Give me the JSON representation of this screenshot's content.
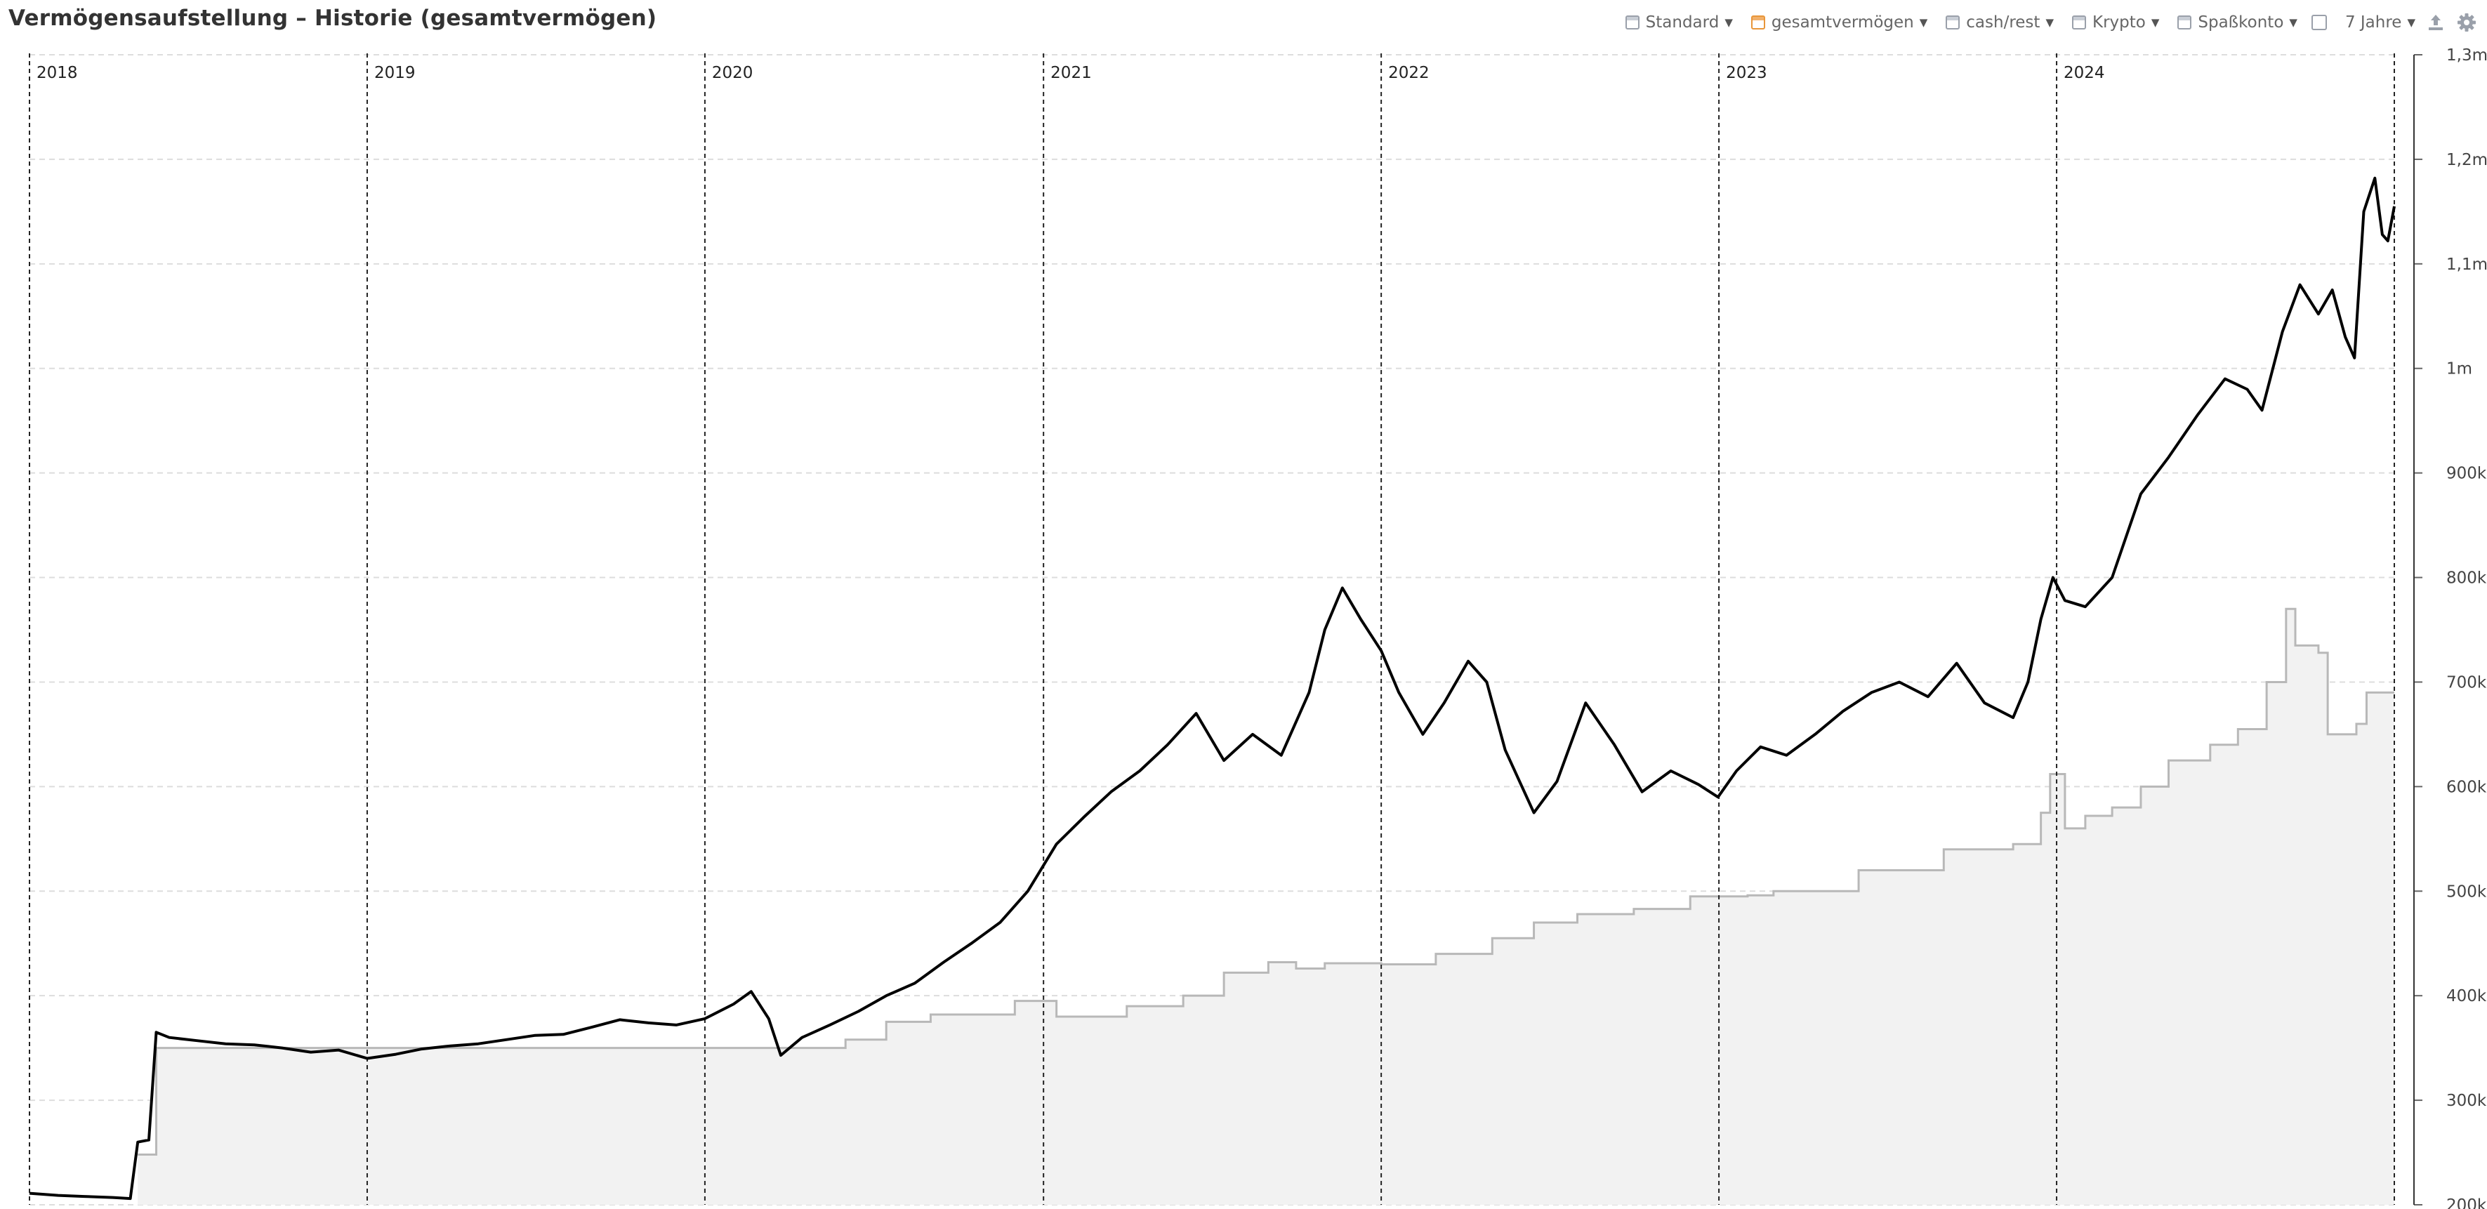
{
  "header": {
    "title": "Vermögensaufstellung – Historie (gesamtvermögen)"
  },
  "toolbar": {
    "items": [
      {
        "label": "Standard",
        "active": false
      },
      {
        "label": "gesamtvermögen",
        "active": true
      },
      {
        "label": "cash/rest",
        "active": false
      },
      {
        "label": "Krypto",
        "active": false
      },
      {
        "label": "Spaßkonto",
        "active": false
      }
    ],
    "range_label": "7 Jahre",
    "icons": [
      "expand-icon",
      "export-icon",
      "gear-icon"
    ]
  },
  "colors": {
    "line": "#000000",
    "invested_line": "#b8b8b8",
    "invested_fill": "#f2f2f2",
    "grid": "#dddddd",
    "year_line": "#222222"
  },
  "chart_data": {
    "type": "line",
    "title": "",
    "xlabel": "",
    "ylabel": "",
    "ylim": [
      200000,
      1300000
    ],
    "y_ticks": [
      "200k",
      "300k",
      "400k",
      "500k",
      "600k",
      "700k",
      "800k",
      "900k",
      "1m",
      "1,1m",
      "1,2m",
      "1,3m"
    ],
    "y_tick_values": [
      200000,
      300000,
      400000,
      500000,
      600000,
      700000,
      800000,
      900000,
      1000000,
      1100000,
      1200000,
      1300000
    ],
    "x_range": [
      "2018-01-01",
      "2024-12-31"
    ],
    "year_markers": [
      {
        "label": "2018",
        "date": "2018-01-01"
      },
      {
        "label": "2019",
        "date": "2019-01-01"
      },
      {
        "label": "2020",
        "date": "2020-01-01"
      },
      {
        "label": "2021",
        "date": "2021-01-01"
      },
      {
        "label": "2022",
        "date": "2022-01-01"
      },
      {
        "label": "2023",
        "date": "2023-01-01"
      },
      {
        "label": "2024",
        "date": "2024-01-01"
      }
    ],
    "grid": true,
    "series": [
      {
        "type": "line",
        "points": [
          [
            "2018-01-01",
            211000
          ],
          [
            "2018-02-01",
            209000
          ],
          [
            "2018-03-01",
            208000
          ],
          [
            "2018-04-01",
            207000
          ],
          [
            "2018-04-20",
            206000
          ],
          [
            "2018-04-28",
            260000
          ],
          [
            "2018-05-10",
            262000
          ],
          [
            "2018-05-18",
            365000
          ],
          [
            "2018-06-01",
            360000
          ],
          [
            "2018-07-01",
            357000
          ],
          [
            "2018-08-01",
            354000
          ],
          [
            "2018-09-01",
            353000
          ],
          [
            "2018-10-01",
            350000
          ],
          [
            "2018-11-01",
            346000
          ],
          [
            "2018-12-01",
            348000
          ],
          [
            "2019-01-01",
            340000
          ],
          [
            "2019-02-01",
            344000
          ],
          [
            "2019-03-01",
            349000
          ],
          [
            "2019-04-01",
            352000
          ],
          [
            "2019-05-01",
            354000
          ],
          [
            "2019-06-01",
            358000
          ],
          [
            "2019-07-01",
            362000
          ],
          [
            "2019-08-01",
            363000
          ],
          [
            "2019-09-01",
            370000
          ],
          [
            "2019-10-01",
            377000
          ],
          [
            "2019-11-01",
            374000
          ],
          [
            "2019-12-01",
            372000
          ],
          [
            "2020-01-01",
            378000
          ],
          [
            "2020-02-01",
            392000
          ],
          [
            "2020-02-20",
            404000
          ],
          [
            "2020-03-10",
            378000
          ],
          [
            "2020-03-23",
            343000
          ],
          [
            "2020-04-15",
            360000
          ],
          [
            "2020-05-15",
            372000
          ],
          [
            "2020-06-15",
            385000
          ],
          [
            "2020-07-15",
            400000
          ],
          [
            "2020-08-15",
            412000
          ],
          [
            "2020-09-15",
            432000
          ],
          [
            "2020-10-15",
            450000
          ],
          [
            "2020-11-15",
            470000
          ],
          [
            "2020-12-15",
            500000
          ],
          [
            "2021-01-15",
            545000
          ],
          [
            "2021-02-15",
            572000
          ],
          [
            "2021-03-15",
            595000
          ],
          [
            "2021-04-15",
            615000
          ],
          [
            "2021-05-15",
            640000
          ],
          [
            "2021-06-15",
            670000
          ],
          [
            "2021-07-15",
            625000
          ],
          [
            "2021-08-15",
            650000
          ],
          [
            "2021-09-15",
            630000
          ],
          [
            "2021-10-15",
            690000
          ],
          [
            "2021-11-01",
            750000
          ],
          [
            "2021-11-20",
            790000
          ],
          [
            "2021-12-10",
            760000
          ],
          [
            "2022-01-01",
            730000
          ],
          [
            "2022-01-20",
            690000
          ],
          [
            "2022-02-15",
            650000
          ],
          [
            "2022-03-10",
            680000
          ],
          [
            "2022-04-05",
            720000
          ],
          [
            "2022-04-25",
            700000
          ],
          [
            "2022-05-15",
            635000
          ],
          [
            "2022-06-15",
            575000
          ],
          [
            "2022-07-10",
            605000
          ],
          [
            "2022-08-10",
            680000
          ],
          [
            "2022-09-10",
            640000
          ],
          [
            "2022-10-10",
            595000
          ],
          [
            "2022-11-10",
            615000
          ],
          [
            "2022-12-10",
            602000
          ],
          [
            "2022-12-31",
            590000
          ],
          [
            "2023-01-20",
            615000
          ],
          [
            "2023-02-15",
            638000
          ],
          [
            "2023-03-15",
            630000
          ],
          [
            "2023-04-15",
            650000
          ],
          [
            "2023-05-15",
            672000
          ],
          [
            "2023-06-15",
            690000
          ],
          [
            "2023-07-15",
            700000
          ],
          [
            "2023-08-15",
            686000
          ],
          [
            "2023-09-15",
            718000
          ],
          [
            "2023-10-15",
            680000
          ],
          [
            "2023-11-15",
            666000
          ],
          [
            "2023-12-01",
            700000
          ],
          [
            "2023-12-15",
            760000
          ],
          [
            "2023-12-28",
            800000
          ],
          [
            "2024-01-10",
            778000
          ],
          [
            "2024-02-01",
            772000
          ],
          [
            "2024-03-01",
            800000
          ],
          [
            "2024-04-01",
            880000
          ],
          [
            "2024-05-01",
            915000
          ],
          [
            "2024-06-01",
            955000
          ],
          [
            "2024-07-01",
            990000
          ],
          [
            "2024-07-25",
            980000
          ],
          [
            "2024-08-10",
            960000
          ],
          [
            "2024-09-01",
            1035000
          ],
          [
            "2024-09-20",
            1080000
          ],
          [
            "2024-10-10",
            1052000
          ],
          [
            "2024-10-25",
            1075000
          ],
          [
            "2024-11-08",
            1030000
          ],
          [
            "2024-11-18",
            1010000
          ],
          [
            "2024-11-28",
            1150000
          ],
          [
            "2024-12-10",
            1182000
          ],
          [
            "2024-12-18",
            1128000
          ],
          [
            "2024-12-24",
            1122000
          ],
          [
            "2024-12-31",
            1155000
          ]
        ]
      },
      {
        "type": "area",
        "points": [
          [
            "2018-04-28",
            248000
          ],
          [
            "2018-05-18",
            350000
          ],
          [
            "2020-03-25",
            350000
          ],
          [
            "2020-06-01",
            358000
          ],
          [
            "2020-07-15",
            375000
          ],
          [
            "2020-09-01",
            382000
          ],
          [
            "2020-12-01",
            395000
          ],
          [
            "2021-01-15",
            380000
          ],
          [
            "2021-04-01",
            390000
          ],
          [
            "2021-06-01",
            400000
          ],
          [
            "2021-07-15",
            422000
          ],
          [
            "2021-09-01",
            432000
          ],
          [
            "2021-10-01",
            426000
          ],
          [
            "2021-11-01",
            431000
          ],
          [
            "2022-01-01",
            430000
          ],
          [
            "2022-03-01",
            440000
          ],
          [
            "2022-05-01",
            455000
          ],
          [
            "2022-06-15",
            470000
          ],
          [
            "2022-08-01",
            478000
          ],
          [
            "2022-10-01",
            483000
          ],
          [
            "2022-12-01",
            495000
          ],
          [
            "2023-02-01",
            496000
          ],
          [
            "2023-03-01",
            500000
          ],
          [
            "2023-06-01",
            520000
          ],
          [
            "2023-09-01",
            540000
          ],
          [
            "2023-11-15",
            545000
          ],
          [
            "2023-12-15",
            575000
          ],
          [
            "2023-12-25",
            612000
          ],
          [
            "2024-01-10",
            560000
          ],
          [
            "2024-02-01",
            572000
          ],
          [
            "2024-03-01",
            580000
          ],
          [
            "2024-04-01",
            600000
          ],
          [
            "2024-05-01",
            625000
          ],
          [
            "2024-06-15",
            640000
          ],
          [
            "2024-07-15",
            655000
          ],
          [
            "2024-08-15",
            700000
          ],
          [
            "2024-09-05",
            770000
          ],
          [
            "2024-09-15",
            735000
          ],
          [
            "2024-10-10",
            728000
          ],
          [
            "2024-10-20",
            650000
          ],
          [
            "2024-11-20",
            660000
          ],
          [
            "2024-12-01",
            690000
          ],
          [
            "2024-12-31",
            690000
          ]
        ]
      }
    ]
  }
}
